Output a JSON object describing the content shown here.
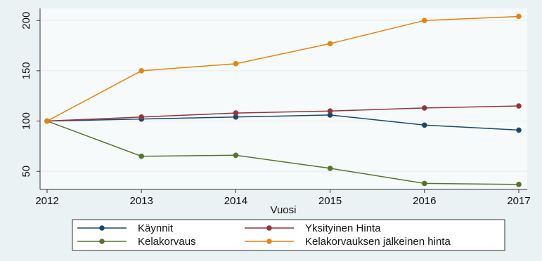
{
  "chart_data": {
    "type": "line",
    "x_label": "Vuosi",
    "x": [
      2012,
      2013,
      2014,
      2015,
      2016,
      2017
    ],
    "xlim": [
      2012,
      2017
    ],
    "xticks": [
      2012,
      2013,
      2014,
      2015,
      2016,
      2017
    ],
    "ylim": [
      32,
      212
    ],
    "yticks": [
      50,
      100,
      150,
      200
    ],
    "grid": true,
    "legend": "bottom",
    "series": [
      {
        "name": "Käynnit",
        "color": "#1a476f",
        "values": [
          100,
          102,
          104,
          106,
          96,
          91
        ]
      },
      {
        "name": "Yksityinen Hinta",
        "color": "#90353b",
        "values": [
          100,
          104,
          108,
          110,
          113,
          115
        ]
      },
      {
        "name": "Kelakorvaus",
        "color": "#55752f",
        "values": [
          100,
          65,
          66,
          53,
          38,
          37
        ]
      },
      {
        "name": "Kelakorvauksen jälkeinen hinta",
        "color": "#e8820c",
        "values": [
          100,
          150,
          157,
          177,
          200,
          204
        ]
      }
    ]
  }
}
